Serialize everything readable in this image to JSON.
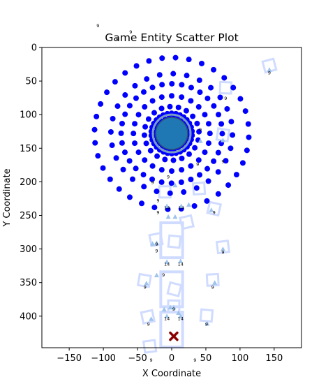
{
  "chart_data": {
    "type": "scatter",
    "title": "Game Entity Scatter Plot",
    "xlabel": "X Coordinate",
    "ylabel": "Y Coordinate",
    "xlim": [
      -190,
      190
    ],
    "ylim": [
      447,
      0
    ],
    "y_inverted": true,
    "x_ticks": [
      -150,
      -100,
      -50,
      0,
      50,
      100,
      150
    ],
    "y_ticks": [
      0,
      50,
      100,
      150,
      200,
      250,
      300,
      350,
      400
    ],
    "x_tick_labels": [
      "−150",
      "−100",
      "−50",
      "0",
      "50",
      "100",
      "150"
    ],
    "y_tick_labels": [
      "0",
      "50",
      "100",
      "150",
      "200",
      "250",
      "300",
      "350",
      "400"
    ],
    "grid": false,
    "colors": {
      "ring_points": "#0000ff",
      "center_entity": "#1f77b4",
      "center_outline": "#7a9ec2",
      "ghost_boxes": "#d0dcff",
      "triangle_markers": "#9ec3ec",
      "x_marker": "#8b0000"
    },
    "series": [
      {
        "marker": "circle",
        "rings": [
          {
            "radius": 23,
            "count": 24
          },
          {
            "radius": 30,
            "count": 30
          },
          {
            "radius": 40,
            "count": 20
          },
          {
            "radius": 56,
            "count": 24
          },
          {
            "radius": 74,
            "count": 32
          },
          {
            "radius": 89,
            "count": 28
          },
          {
            "radius": 113,
            "count": 36
          }
        ],
        "center": [
          0,
          128
        ]
      },
      {
        "marker": "large-circle",
        "points": [
          [
            0,
            128
          ]
        ]
      },
      {
        "marker": "x",
        "points": [
          [
            3,
            430
          ]
        ]
      },
      {
        "marker": "triangle",
        "points": [
          [
            42,
            139
          ],
          [
            -28,
            292
          ],
          [
            -22,
            291
          ],
          [
            -22,
            339
          ],
          [
            -7,
            319
          ],
          [
            13,
            318
          ],
          [
            -11,
            390
          ],
          [
            -2,
            387
          ],
          [
            3,
            387
          ],
          [
            10,
            395
          ],
          [
            -7,
            400
          ],
          [
            13,
            400
          ],
          [
            -37,
            351
          ],
          [
            -30,
            404
          ],
          [
            52,
            411
          ],
          [
            63,
            350
          ],
          [
            75,
            300
          ],
          [
            5,
            205
          ],
          [
            -7,
            236
          ],
          [
            14,
            236
          ],
          [
            58,
            242
          ],
          [
            25,
            234
          ],
          [
            143,
            33
          ],
          [
            75,
            138
          ],
          [
            -5,
            252
          ],
          [
            5,
            252
          ]
        ]
      },
      {
        "marker": "ghost-box",
        "points": [
          [
            143,
            27
          ],
          [
            79,
            60
          ],
          [
            -23,
            286
          ],
          [
            4,
            289
          ],
          [
            75,
            297
          ],
          [
            -40,
            347
          ],
          [
            60,
            346
          ],
          [
            4,
            360
          ],
          [
            3,
            385
          ],
          [
            -35,
            401
          ],
          [
            51,
            399
          ],
          [
            -32,
            445
          ],
          [
            75,
            130
          ],
          [
            40,
            210
          ],
          [
            62,
            240
          ],
          [
            -10,
            215
          ],
          [
            22,
            260
          ]
        ]
      }
    ],
    "annotations": [
      {
        "text": "9",
        "x": 143,
        "y": 40
      },
      {
        "text": "9",
        "x": 79,
        "y": 78
      },
      {
        "text": "9",
        "x": 42,
        "y": 125
      },
      {
        "text": "9",
        "x": 75,
        "y": 172
      },
      {
        "text": "9",
        "x": 38,
        "y": 176
      },
      {
        "text": "9",
        "x": -5,
        "y": 195
      },
      {
        "text": "9",
        "x": -28,
        "y": 203
      },
      {
        "text": "9",
        "x": -20,
        "y": 230
      },
      {
        "text": "14",
        "x": -7,
        "y": 241
      },
      {
        "text": "14",
        "x": 14,
        "y": 241
      },
      {
        "text": "9",
        "x": -20,
        "y": 248
      },
      {
        "text": "9",
        "x": 62,
        "y": 248
      },
      {
        "text": "9",
        "x": -22,
        "y": 295
      },
      {
        "text": "9",
        "x": -22,
        "y": 305
      },
      {
        "text": "9",
        "x": 75,
        "y": 307
      },
      {
        "text": "14",
        "x": -7,
        "y": 325
      },
      {
        "text": "14",
        "x": 13,
        "y": 325
      },
      {
        "text": "9",
        "x": -12,
        "y": 341
      },
      {
        "text": "9",
        "x": -39,
        "y": 359
      },
      {
        "text": "9",
        "x": 60,
        "y": 359
      },
      {
        "text": "9",
        "x": 3,
        "y": 392
      },
      {
        "text": "14",
        "x": -7,
        "y": 406
      },
      {
        "text": "14",
        "x": 13,
        "y": 406
      },
      {
        "text": "9",
        "x": -34,
        "y": 414
      },
      {
        "text": "9",
        "x": 51,
        "y": 414
      },
      {
        "text": "9",
        "x": -108,
        "y": -30
      },
      {
        "text": "9",
        "x": -60,
        "y": -21
      },
      {
        "text": "9",
        "x": -80,
        "y": -10
      },
      {
        "text": "9",
        "x": -30,
        "y": 468
      },
      {
        "text": "9",
        "x": 34,
        "y": 468
      }
    ]
  }
}
